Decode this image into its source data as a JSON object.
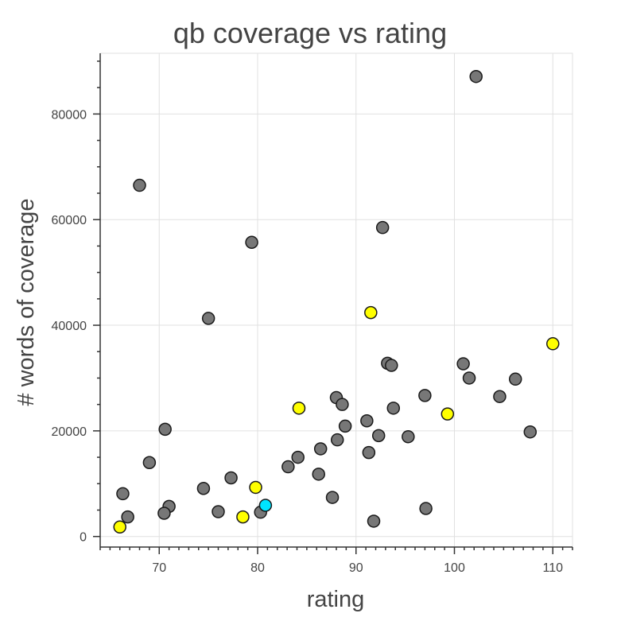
{
  "chart_data": {
    "type": "scatter",
    "title": "qb coverage vs rating",
    "xlabel": "rating",
    "ylabel": "# words of coverage",
    "xlim": [
      64,
      112
    ],
    "ylim": [
      -2000,
      91500
    ],
    "x_ticks": [
      70,
      80,
      90,
      100,
      110
    ],
    "y_ticks": [
      0,
      20000,
      40000,
      60000,
      80000
    ],
    "grid": true,
    "colors": {
      "gray": "#777777",
      "yellow": "#ffff00",
      "cyan": "#00e5ff"
    },
    "points": [
      {
        "x": 102.2,
        "y": 87100,
        "color": "gray"
      },
      {
        "x": 68.0,
        "y": 66500,
        "color": "gray"
      },
      {
        "x": 92.7,
        "y": 58500,
        "color": "gray"
      },
      {
        "x": 79.4,
        "y": 55700,
        "color": "gray"
      },
      {
        "x": 75.0,
        "y": 41300,
        "color": "gray"
      },
      {
        "x": 93.2,
        "y": 32800,
        "color": "gray"
      },
      {
        "x": 93.6,
        "y": 32400,
        "color": "gray"
      },
      {
        "x": 100.9,
        "y": 32700,
        "color": "gray"
      },
      {
        "x": 101.5,
        "y": 30000,
        "color": "gray"
      },
      {
        "x": 106.2,
        "y": 29800,
        "color": "gray"
      },
      {
        "x": 97.0,
        "y": 26700,
        "color": "gray"
      },
      {
        "x": 104.6,
        "y": 26500,
        "color": "gray"
      },
      {
        "x": 88.0,
        "y": 26300,
        "color": "gray"
      },
      {
        "x": 88.6,
        "y": 25000,
        "color": "gray"
      },
      {
        "x": 93.8,
        "y": 24300,
        "color": "gray"
      },
      {
        "x": 91.1,
        "y": 21900,
        "color": "gray"
      },
      {
        "x": 88.9,
        "y": 20900,
        "color": "gray"
      },
      {
        "x": 70.6,
        "y": 20300,
        "color": "gray"
      },
      {
        "x": 107.7,
        "y": 19800,
        "color": "gray"
      },
      {
        "x": 92.3,
        "y": 19100,
        "color": "gray"
      },
      {
        "x": 95.3,
        "y": 18900,
        "color": "gray"
      },
      {
        "x": 88.1,
        "y": 18300,
        "color": "gray"
      },
      {
        "x": 86.4,
        "y": 16600,
        "color": "gray"
      },
      {
        "x": 91.3,
        "y": 15900,
        "color": "gray"
      },
      {
        "x": 84.1,
        "y": 15000,
        "color": "gray"
      },
      {
        "x": 69.0,
        "y": 14000,
        "color": "gray"
      },
      {
        "x": 83.1,
        "y": 13200,
        "color": "gray"
      },
      {
        "x": 86.2,
        "y": 11800,
        "color": "gray"
      },
      {
        "x": 77.3,
        "y": 11100,
        "color": "gray"
      },
      {
        "x": 74.5,
        "y": 9100,
        "color": "gray"
      },
      {
        "x": 66.3,
        "y": 8100,
        "color": "gray"
      },
      {
        "x": 87.6,
        "y": 7400,
        "color": "gray"
      },
      {
        "x": 71.0,
        "y": 5700,
        "color": "gray"
      },
      {
        "x": 97.1,
        "y": 5300,
        "color": "gray"
      },
      {
        "x": 76.0,
        "y": 4700,
        "color": "gray"
      },
      {
        "x": 80.3,
        "y": 4600,
        "color": "gray"
      },
      {
        "x": 70.5,
        "y": 4400,
        "color": "gray"
      },
      {
        "x": 66.8,
        "y": 3700,
        "color": "gray"
      },
      {
        "x": 91.8,
        "y": 2900,
        "color": "gray"
      },
      {
        "x": 91.5,
        "y": 42400,
        "color": "yellow"
      },
      {
        "x": 110.0,
        "y": 36500,
        "color": "yellow"
      },
      {
        "x": 84.2,
        "y": 24300,
        "color": "yellow"
      },
      {
        "x": 99.3,
        "y": 23200,
        "color": "yellow"
      },
      {
        "x": 79.8,
        "y": 9300,
        "color": "yellow"
      },
      {
        "x": 78.5,
        "y": 3700,
        "color": "yellow"
      },
      {
        "x": 66.0,
        "y": 1800,
        "color": "yellow"
      },
      {
        "x": 80.8,
        "y": 5900,
        "color": "cyan"
      }
    ]
  }
}
